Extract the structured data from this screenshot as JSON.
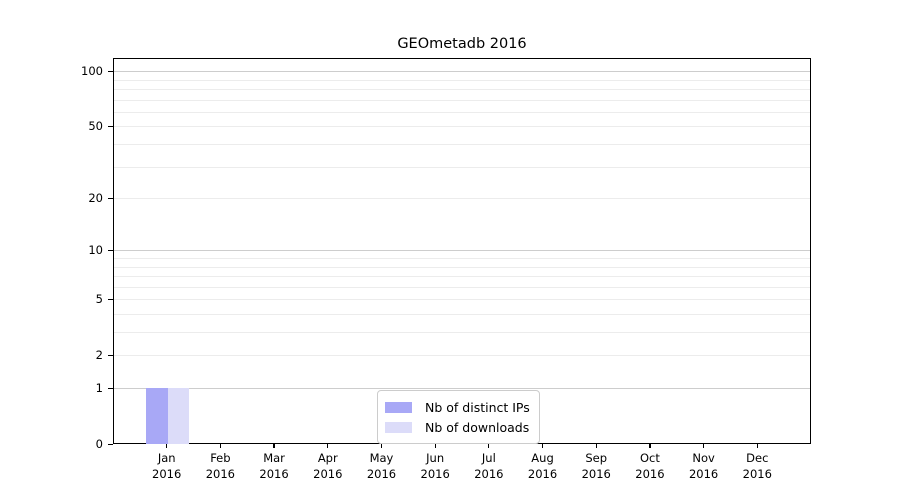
{
  "chart_data": {
    "type": "bar",
    "title": "GEOmetadb 2016",
    "xlabel": "",
    "ylabel": "",
    "yscale": "log1p",
    "ylim": [
      0,
      118
    ],
    "yticks": [
      0,
      1,
      2,
      5,
      10,
      20,
      50,
      100
    ],
    "categories": [
      {
        "month": "Jan",
        "year": "2016"
      },
      {
        "month": "Feb",
        "year": "2016"
      },
      {
        "month": "Mar",
        "year": "2016"
      },
      {
        "month": "Apr",
        "year": "2016"
      },
      {
        "month": "May",
        "year": "2016"
      },
      {
        "month": "Jun",
        "year": "2016"
      },
      {
        "month": "Jul",
        "year": "2016"
      },
      {
        "month": "Aug",
        "year": "2016"
      },
      {
        "month": "Sep",
        "year": "2016"
      },
      {
        "month": "Oct",
        "year": "2016"
      },
      {
        "month": "Nov",
        "year": "2016"
      },
      {
        "month": "Dec",
        "year": "2016"
      }
    ],
    "series": [
      {
        "name": "Nb of distinct IPs",
        "color": "#a8a8f6",
        "values": [
          1,
          0,
          0,
          0,
          0,
          0,
          0,
          0,
          0,
          0,
          0,
          0
        ]
      },
      {
        "name": "Nb of downloads",
        "color": "#dcdcf9",
        "values": [
          1,
          0,
          0,
          0,
          0,
          0,
          0,
          0,
          0,
          0,
          0,
          0
        ]
      }
    ],
    "grid": {
      "major_values": [
        1,
        10,
        100
      ],
      "minor_values": [
        2,
        3,
        4,
        5,
        6,
        7,
        8,
        9,
        20,
        30,
        40,
        50,
        60,
        70,
        80,
        90
      ],
      "major_color": "#cdcdcd",
      "minor_color": "#ececec"
    },
    "legend": {
      "position": "bottom-center",
      "entries": [
        "Nb of distinct IPs",
        "Nb of downloads"
      ]
    },
    "spine_color": "#000000"
  }
}
